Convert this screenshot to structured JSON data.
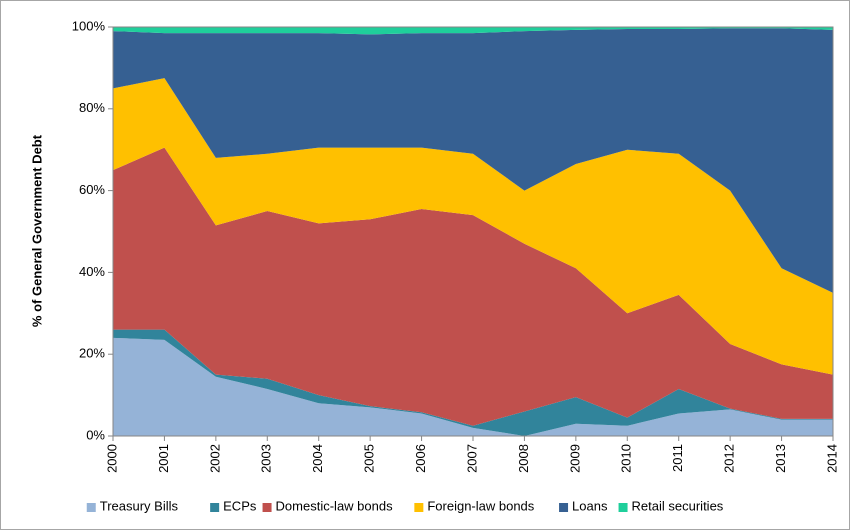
{
  "chart_data": {
    "type": "stacked_area",
    "y_label": "% of General Government Debt",
    "categories": [
      "2000",
      "2001",
      "2002",
      "2003",
      "2004",
      "2005",
      "2006",
      "2007",
      "2008",
      "2009",
      "2010",
      "2011",
      "2012",
      "2013",
      "2014"
    ],
    "ylim": [
      0,
      100
    ],
    "yticks": [
      {
        "value": 0,
        "label": "0%"
      },
      {
        "value": 20,
        "label": "20%"
      },
      {
        "value": 40,
        "label": "40%"
      },
      {
        "value": 60,
        "label": "60%"
      },
      {
        "value": 80,
        "label": "80%"
      },
      {
        "value": 100,
        "label": "100%"
      }
    ],
    "legend": "bottom",
    "series": [
      {
        "name": "Treasury Bills",
        "color": "#95b3d7",
        "values": [
          24,
          23.5,
          14.5,
          11.5,
          8,
          7,
          5.5,
          2,
          0,
          3,
          2.5,
          5.5,
          6.5,
          4,
          4
        ]
      },
      {
        "name": "ECPs",
        "color": "#31849b",
        "values": [
          2,
          2.5,
          0.5,
          2.5,
          2,
          0.3,
          0.3,
          0.5,
          6,
          6.5,
          2,
          6,
          0.2,
          0.2,
          0.2
        ]
      },
      {
        "name": "Domestic-law bonds",
        "color": "#c0504d",
        "values": [
          39,
          44.5,
          36.5,
          41,
          42,
          45.7,
          49.7,
          51.5,
          41,
          31.5,
          25.5,
          23,
          15.8,
          13.3,
          10.8
        ]
      },
      {
        "name": "Foreign-law bonds",
        "color": "#ffc000",
        "values": [
          20,
          17,
          16.5,
          14,
          18.5,
          17.5,
          15,
          15,
          13,
          25.5,
          40,
          34.5,
          37.5,
          23.5,
          20
        ]
      },
      {
        "name": "Loans",
        "color": "#366092",
        "values": [
          14,
          11,
          30.5,
          29.5,
          28,
          27.7,
          28,
          29.5,
          39,
          32.8,
          29.5,
          30.5,
          39.7,
          58.7,
          64.3
        ]
      },
      {
        "name": "Retail securities",
        "color": "#1fcf9b",
        "values": [
          1,
          1.5,
          1.5,
          1.5,
          1.5,
          1.8,
          1.5,
          1.5,
          1,
          0.7,
          0.5,
          0.5,
          0.3,
          0.3,
          0.7
        ]
      }
    ]
  }
}
